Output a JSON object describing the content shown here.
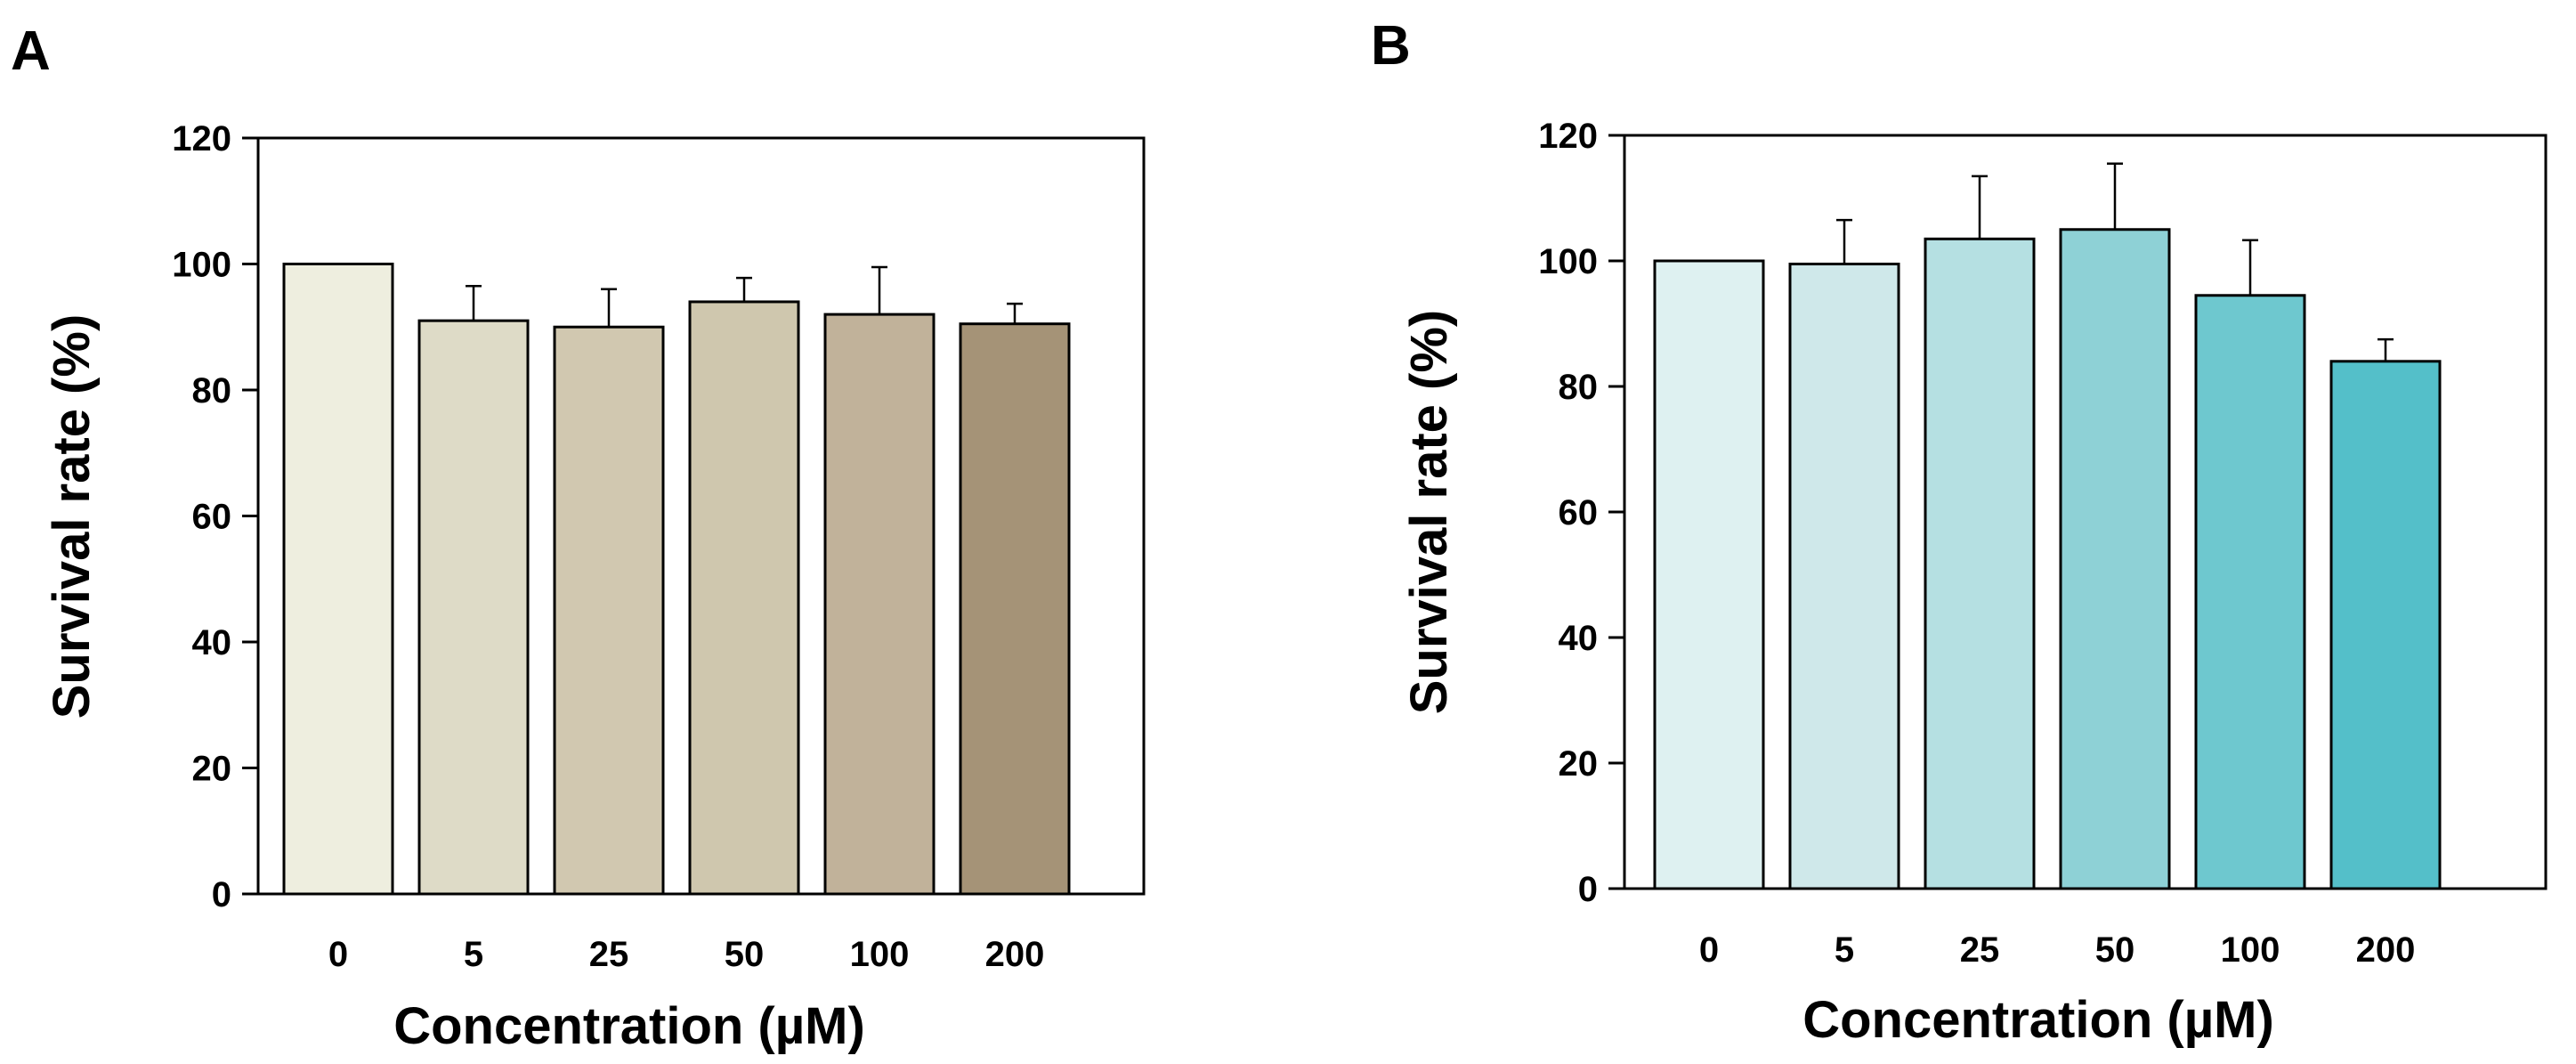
{
  "chart_data": [
    {
      "panel": "A",
      "type": "bar",
      "categories": [
        "0",
        "5",
        "25",
        "50",
        "100",
        "200"
      ],
      "values": [
        100,
        91,
        90,
        94,
        92,
        90.5
      ],
      "errors": [
        0,
        5.5,
        6.0,
        3.8,
        7.5,
        3.2
      ],
      "colors": [
        "#eeeedf",
        "#dedbc7",
        "#d1c8b0",
        "#cfc7ae",
        "#c1b29a",
        "#a59377"
      ],
      "xlabel": "Concentration (µM)",
      "ylabel": "Survival rate (%)",
      "ylim": [
        0,
        120
      ],
      "yticks": [
        0,
        20,
        40,
        60,
        80,
        100,
        120
      ],
      "grid": false
    },
    {
      "panel": "B",
      "type": "bar",
      "categories": [
        "0",
        "5",
        "25",
        "50",
        "100",
        "200"
      ],
      "values": [
        100,
        99.5,
        103.5,
        105,
        94.5,
        84
      ],
      "errors": [
        0,
        7.0,
        10.0,
        10.5,
        8.8,
        3.5
      ],
      "colors": [
        "#def1f1",
        "#cfe8ea",
        "#b5e0e2",
        "#8ed1d6",
        "#6ec8cf",
        "#54bfc9"
      ],
      "xlabel": "Concentration (µM)",
      "ylabel": "Survival rate (%)",
      "ylim": [
        0,
        120
      ],
      "yticks": [
        0,
        20,
        40,
        60,
        80,
        100,
        120
      ],
      "grid": false
    }
  ]
}
